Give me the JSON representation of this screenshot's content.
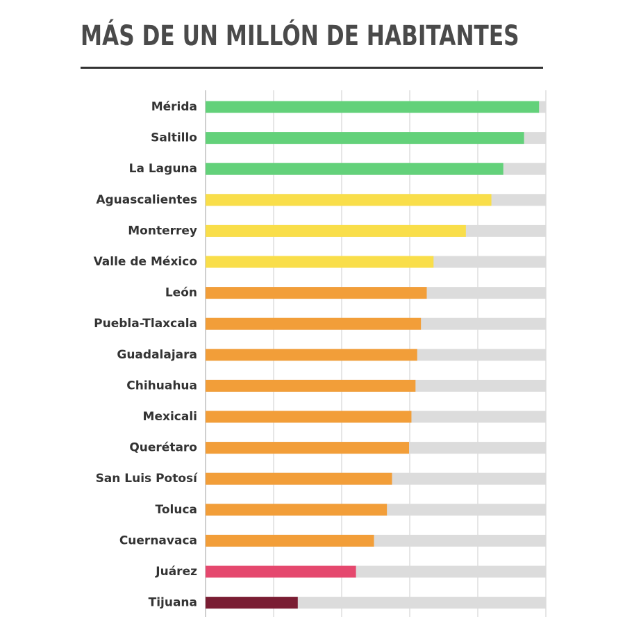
{
  "chart_data": {
    "type": "bar",
    "orientation": "horizontal",
    "title": "MÁS DE UN MILLÓN DE HABITANTES",
    "categories": [
      "Mérida",
      "Saltillo",
      "La Laguna",
      "Aguascalientes",
      "Monterrey",
      "Valle de México",
      "León",
      "Puebla-Tlaxcala",
      "Guadalajara",
      "Chihuahua",
      "Mexicali",
      "Querétaro",
      "San Luis Potosí",
      "Toluca",
      "Cuernavaca",
      "Juárez",
      "Tijuana"
    ],
    "values": [
      0.98,
      0.936,
      0.875,
      0.84,
      0.765,
      0.67,
      0.65,
      0.633,
      0.622,
      0.617,
      0.605,
      0.598,
      0.548,
      0.533,
      0.495,
      0.442,
      0.271
    ],
    "bar_colors": [
      "#63d17a",
      "#63d17a",
      "#63d17a",
      "#f9de4a",
      "#f9de4a",
      "#f9de4a",
      "#f29e39",
      "#f29e39",
      "#f29e39",
      "#f29e39",
      "#f29e39",
      "#f29e39",
      "#f29e39",
      "#f29e39",
      "#f29e39",
      "#e5486e",
      "#7a1d33"
    ],
    "track_color": "#dcdcdc",
    "xlim": [
      0,
      1
    ],
    "grid": true,
    "legend": "none"
  }
}
